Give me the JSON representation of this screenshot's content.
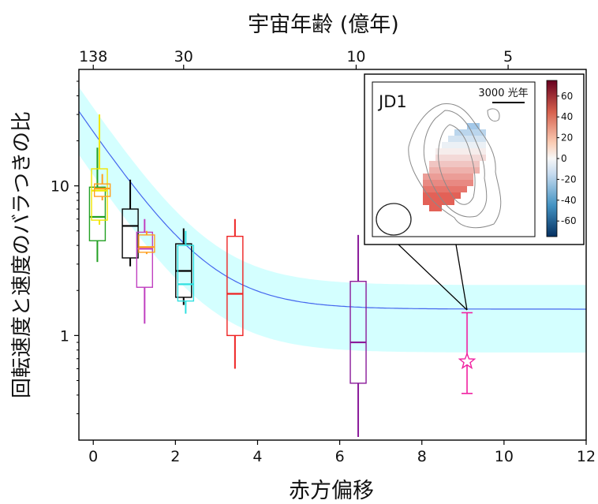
{
  "chart_data": {
    "type": "box",
    "title": "",
    "xlabel": "赤方偏移",
    "ylabel": "回転速度と速度のバラつきの比",
    "top_axis_label": "宇宙年齢 (億年)",
    "top_ticks": [
      {
        "z": 0.0,
        "label": "138"
      },
      {
        "z": 2.2,
        "label": "30"
      },
      {
        "z": 6.4,
        "label": "10"
      },
      {
        "z": 10.1,
        "label": "5"
      }
    ],
    "x_ticks": [
      "0",
      "2",
      "4",
      "6",
      "8",
      "10",
      "12"
    ],
    "y_ticks": [
      "1",
      "10"
    ],
    "xlim": [
      -0.35,
      12
    ],
    "ylim": [
      0.2,
      60
    ],
    "yscale": "log",
    "boxes": [
      {
        "x": 0.1,
        "color": "#22a022",
        "whisker_low": 3.1,
        "q1": 4.3,
        "median": 6.2,
        "q3": 9.8,
        "whisker_high": 18
      },
      {
        "x": 0.15,
        "color": "#f2e600",
        "whisker_low": 5.5,
        "q1": 5.9,
        "median": 9.3,
        "q3": 13,
        "whisker_high": 30
      },
      {
        "x": 0.22,
        "color": "#ffa020",
        "whisker_low": 8.0,
        "q1": 8.5,
        "median": 9.6,
        "q3": 10.3,
        "whisker_high": 12
      },
      {
        "x": 0.9,
        "color": "#000000",
        "whisker_low": 2.9,
        "q1": 3.3,
        "median": 5.4,
        "q3": 7.0,
        "whisker_high": 11
      },
      {
        "x": 1.25,
        "color": "#c040c0",
        "whisker_low": 1.2,
        "q1": 2.1,
        "median": 3.8,
        "q3": 4.9,
        "whisker_high": 6.0
      },
      {
        "x": 1.3,
        "color": "#ffa020",
        "whisker_low": 3.5,
        "q1": 3.6,
        "median": 3.9,
        "q3": 4.7,
        "whisker_high": 5.0
      },
      {
        "x": 2.2,
        "color": "#000000",
        "whisker_low": 1.6,
        "q1": 1.8,
        "median": 2.7,
        "q3": 4.1,
        "whisker_high": 5.2
      },
      {
        "x": 2.25,
        "color": "#30e0e0",
        "whisker_low": 1.4,
        "q1": 1.7,
        "median": 2.2,
        "q3": 4.0,
        "whisker_high": 5.0
      },
      {
        "x": 3.45,
        "color": "#ee2222",
        "whisker_low": 0.6,
        "q1": 1.0,
        "median": 1.9,
        "q3": 4.6,
        "whisker_high": 6.0
      },
      {
        "x": 6.45,
        "color": "#8a1a9a",
        "whisker_low": 0.21,
        "q1": 0.48,
        "median": 0.9,
        "q3": 2.3,
        "whisker_high": 4.7
      }
    ],
    "point": {
      "x": 9.1,
      "y": 0.67,
      "y_low": 0.41,
      "y_high": 1.42,
      "color": "#f020a0",
      "marker": "star"
    },
    "trend_curve": {
      "color": "#4466ee",
      "band_color": "#ccffff"
    },
    "inset": {
      "label": "JD1",
      "scale_label": "3000 光年",
      "colorbar_ticks": [
        "60",
        "40",
        "20",
        "0",
        "-20",
        "-40",
        "-60"
      ],
      "colorbar_range": [
        -75,
        75
      ]
    }
  }
}
